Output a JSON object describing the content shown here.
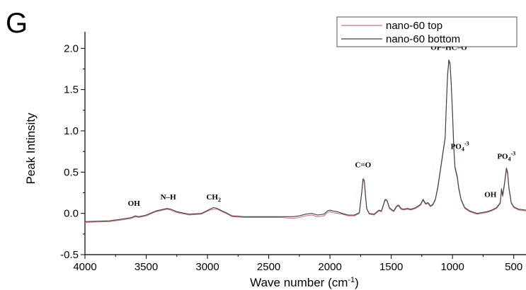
{
  "panel_label": "G",
  "chart_data": {
    "type": "line",
    "title": "",
    "xlabel": "Wave number (cm",
    "xlabel_sup": "-1",
    "xlabel_close": ")",
    "ylabel": "Peak Intinsity",
    "xlim": [
      4000,
      400
    ],
    "ylim": [
      -0.5,
      2.2
    ],
    "x_ticks": [
      4000,
      3500,
      3000,
      2500,
      2000,
      1500,
      1000,
      500
    ],
    "y_ticks": [
      -0.5,
      0.0,
      0.5,
      1.0,
      1.5,
      2.0
    ],
    "x_tick_labels": [
      "4000",
      "3500",
      "3000",
      "2500",
      "2000",
      "1500",
      "1000",
      "500"
    ],
    "y_tick_labels": [
      "-0.5",
      "0.0",
      "0.5",
      "1.0",
      "1.5",
      "2.0"
    ],
    "grid": false,
    "legend_position": "top-right",
    "series": [
      {
        "name": "nano-60 top",
        "color": "#c87878",
        "points": [
          [
            4000,
            -0.11
          ],
          [
            3800,
            -0.1
          ],
          [
            3700,
            -0.08
          ],
          [
            3620,
            -0.06
          ],
          [
            3590,
            -0.04
          ],
          [
            3560,
            -0.05
          ],
          [
            3500,
            -0.03
          ],
          [
            3420,
            0.02
          ],
          [
            3360,
            0.04
          ],
          [
            3330,
            0.05
          ],
          [
            3300,
            0.04
          ],
          [
            3250,
            0.01
          ],
          [
            3150,
            -0.02
          ],
          [
            3050,
            -0.01
          ],
          [
            2980,
            0.04
          ],
          [
            2950,
            0.05
          ],
          [
            2920,
            0.05
          ],
          [
            2880,
            0.02
          ],
          [
            2850,
            0.0
          ],
          [
            2800,
            -0.04
          ],
          [
            2700,
            -0.05
          ],
          [
            2600,
            -0.05
          ],
          [
            2500,
            -0.05
          ],
          [
            2400,
            -0.05
          ],
          [
            2300,
            -0.06
          ],
          [
            2250,
            -0.05
          ],
          [
            2200,
            -0.03
          ],
          [
            2150,
            -0.02
          ],
          [
            2100,
            -0.04
          ],
          [
            2050,
            -0.03
          ],
          [
            2020,
            0.01
          ],
          [
            2000,
            0.02
          ],
          [
            1980,
            0.01
          ],
          [
            1940,
            0.0
          ],
          [
            1900,
            -0.01
          ],
          [
            1850,
            -0.03
          ],
          [
            1800,
            -0.03
          ],
          [
            1760,
            0.0
          ],
          [
            1740,
            0.25
          ],
          [
            1730,
            0.4
          ],
          [
            1720,
            0.38
          ],
          [
            1710,
            0.2
          ],
          [
            1700,
            0.05
          ],
          [
            1680,
            -0.01
          ],
          [
            1640,
            -0.02
          ],
          [
            1600,
            0.03
          ],
          [
            1580,
            0.02
          ],
          [
            1550,
            0.16
          ],
          [
            1535,
            0.15
          ],
          [
            1515,
            0.06
          ],
          [
            1500,
            0.04
          ],
          [
            1480,
            0.02
          ],
          [
            1455,
            0.08
          ],
          [
            1440,
            0.09
          ],
          [
            1420,
            0.05
          ],
          [
            1400,
            0.04
          ],
          [
            1370,
            0.05
          ],
          [
            1340,
            0.04
          ],
          [
            1300,
            0.06
          ],
          [
            1260,
            0.1
          ],
          [
            1240,
            0.16
          ],
          [
            1220,
            0.11
          ],
          [
            1200,
            0.12
          ],
          [
            1180,
            0.08
          ],
          [
            1160,
            0.1
          ],
          [
            1140,
            0.16
          ],
          [
            1120,
            0.3
          ],
          [
            1100,
            0.5
          ],
          [
            1080,
            0.7
          ],
          [
            1060,
            0.9
          ],
          [
            1050,
            1.3
          ],
          [
            1040,
            1.65
          ],
          [
            1030,
            1.84
          ],
          [
            1020,
            1.8
          ],
          [
            1010,
            1.55
          ],
          [
            1000,
            1.2
          ],
          [
            990,
            0.8
          ],
          [
            980,
            0.55
          ],
          [
            970,
            0.48
          ],
          [
            960,
            0.42
          ],
          [
            950,
            0.3
          ],
          [
            930,
            0.16
          ],
          [
            900,
            0.06
          ],
          [
            860,
            0.02
          ],
          [
            820,
            0.0
          ],
          [
            800,
            -0.01
          ],
          [
            760,
            0.0
          ],
          [
            720,
            0.01
          ],
          [
            680,
            0.03
          ],
          [
            640,
            0.06
          ],
          [
            610,
            0.12
          ],
          [
            600,
            0.28
          ],
          [
            590,
            0.2
          ],
          [
            575,
            0.35
          ],
          [
            560,
            0.52
          ],
          [
            550,
            0.48
          ],
          [
            540,
            0.3
          ],
          [
            520,
            0.12
          ],
          [
            500,
            0.07
          ],
          [
            460,
            0.04
          ],
          [
            400,
            0.03
          ]
        ]
      },
      {
        "name": "nano-60 bottom",
        "color": "#404040",
        "points": [
          [
            4000,
            -0.1
          ],
          [
            3800,
            -0.09
          ],
          [
            3700,
            -0.07
          ],
          [
            3620,
            -0.05
          ],
          [
            3590,
            -0.03
          ],
          [
            3560,
            -0.04
          ],
          [
            3500,
            -0.02
          ],
          [
            3420,
            0.03
          ],
          [
            3360,
            0.05
          ],
          [
            3330,
            0.06
          ],
          [
            3300,
            0.05
          ],
          [
            3250,
            0.02
          ],
          [
            3150,
            -0.01
          ],
          [
            3050,
            0.0
          ],
          [
            2980,
            0.05
          ],
          [
            2950,
            0.07
          ],
          [
            2920,
            0.06
          ],
          [
            2880,
            0.03
          ],
          [
            2850,
            0.01
          ],
          [
            2800,
            -0.03
          ],
          [
            2700,
            -0.04
          ],
          [
            2600,
            -0.04
          ],
          [
            2500,
            -0.04
          ],
          [
            2400,
            -0.04
          ],
          [
            2300,
            -0.04
          ],
          [
            2250,
            -0.03
          ],
          [
            2200,
            -0.01
          ],
          [
            2150,
            0.0
          ],
          [
            2100,
            -0.02
          ],
          [
            2050,
            -0.01
          ],
          [
            2020,
            0.03
          ],
          [
            2000,
            0.04
          ],
          [
            1980,
            0.03
          ],
          [
            1940,
            0.02
          ],
          [
            1900,
            0.0
          ],
          [
            1850,
            -0.02
          ],
          [
            1800,
            -0.02
          ],
          [
            1760,
            0.01
          ],
          [
            1740,
            0.27
          ],
          [
            1730,
            0.42
          ],
          [
            1720,
            0.4
          ],
          [
            1710,
            0.22
          ],
          [
            1700,
            0.06
          ],
          [
            1680,
            0.0
          ],
          [
            1640,
            -0.01
          ],
          [
            1600,
            0.04
          ],
          [
            1580,
            0.03
          ],
          [
            1550,
            0.17
          ],
          [
            1535,
            0.16
          ],
          [
            1515,
            0.07
          ],
          [
            1500,
            0.05
          ],
          [
            1480,
            0.03
          ],
          [
            1455,
            0.09
          ],
          [
            1440,
            0.1
          ],
          [
            1420,
            0.06
          ],
          [
            1400,
            0.05
          ],
          [
            1370,
            0.06
          ],
          [
            1340,
            0.05
          ],
          [
            1300,
            0.07
          ],
          [
            1260,
            0.11
          ],
          [
            1240,
            0.17
          ],
          [
            1220,
            0.12
          ],
          [
            1200,
            0.13
          ],
          [
            1180,
            0.09
          ],
          [
            1160,
            0.11
          ],
          [
            1140,
            0.17
          ],
          [
            1120,
            0.32
          ],
          [
            1100,
            0.52
          ],
          [
            1080,
            0.72
          ],
          [
            1060,
            0.92
          ],
          [
            1050,
            1.33
          ],
          [
            1040,
            1.68
          ],
          [
            1030,
            1.86
          ],
          [
            1020,
            1.82
          ],
          [
            1010,
            1.57
          ],
          [
            1000,
            1.22
          ],
          [
            990,
            0.82
          ],
          [
            980,
            0.57
          ],
          [
            970,
            0.5
          ],
          [
            960,
            0.44
          ],
          [
            950,
            0.32
          ],
          [
            930,
            0.17
          ],
          [
            900,
            0.07
          ],
          [
            860,
            0.03
          ],
          [
            820,
            0.01
          ],
          [
            800,
            0.0
          ],
          [
            760,
            0.01
          ],
          [
            720,
            0.02
          ],
          [
            680,
            0.04
          ],
          [
            640,
            0.07
          ],
          [
            610,
            0.13
          ],
          [
            600,
            0.3
          ],
          [
            590,
            0.22
          ],
          [
            575,
            0.37
          ],
          [
            560,
            0.55
          ],
          [
            550,
            0.5
          ],
          [
            540,
            0.32
          ],
          [
            520,
            0.13
          ],
          [
            500,
            0.08
          ],
          [
            460,
            0.05
          ],
          [
            400,
            0.04
          ]
        ]
      }
    ],
    "annotations": [
      {
        "label": "OH",
        "x": 3600,
        "y": 0.09
      },
      {
        "label": "N–H",
        "x": 3320,
        "y": 0.17
      },
      {
        "label": "CH",
        "sub": "2",
        "x": 2950,
        "y": 0.17
      },
      {
        "label": "C=O",
        "x": 1730,
        "y": 0.56
      },
      {
        "label": "OP–HC–O",
        "x": 1030,
        "y": 1.98
      },
      {
        "label": "PO",
        "sub": "4",
        "sup": "-3",
        "x": 940,
        "y": 0.78
      },
      {
        "label": "OH",
        "x": 690,
        "y": 0.2
      },
      {
        "label": "PO",
        "sub": "4",
        "sup": "-3",
        "x": 560,
        "y": 0.66
      }
    ]
  }
}
